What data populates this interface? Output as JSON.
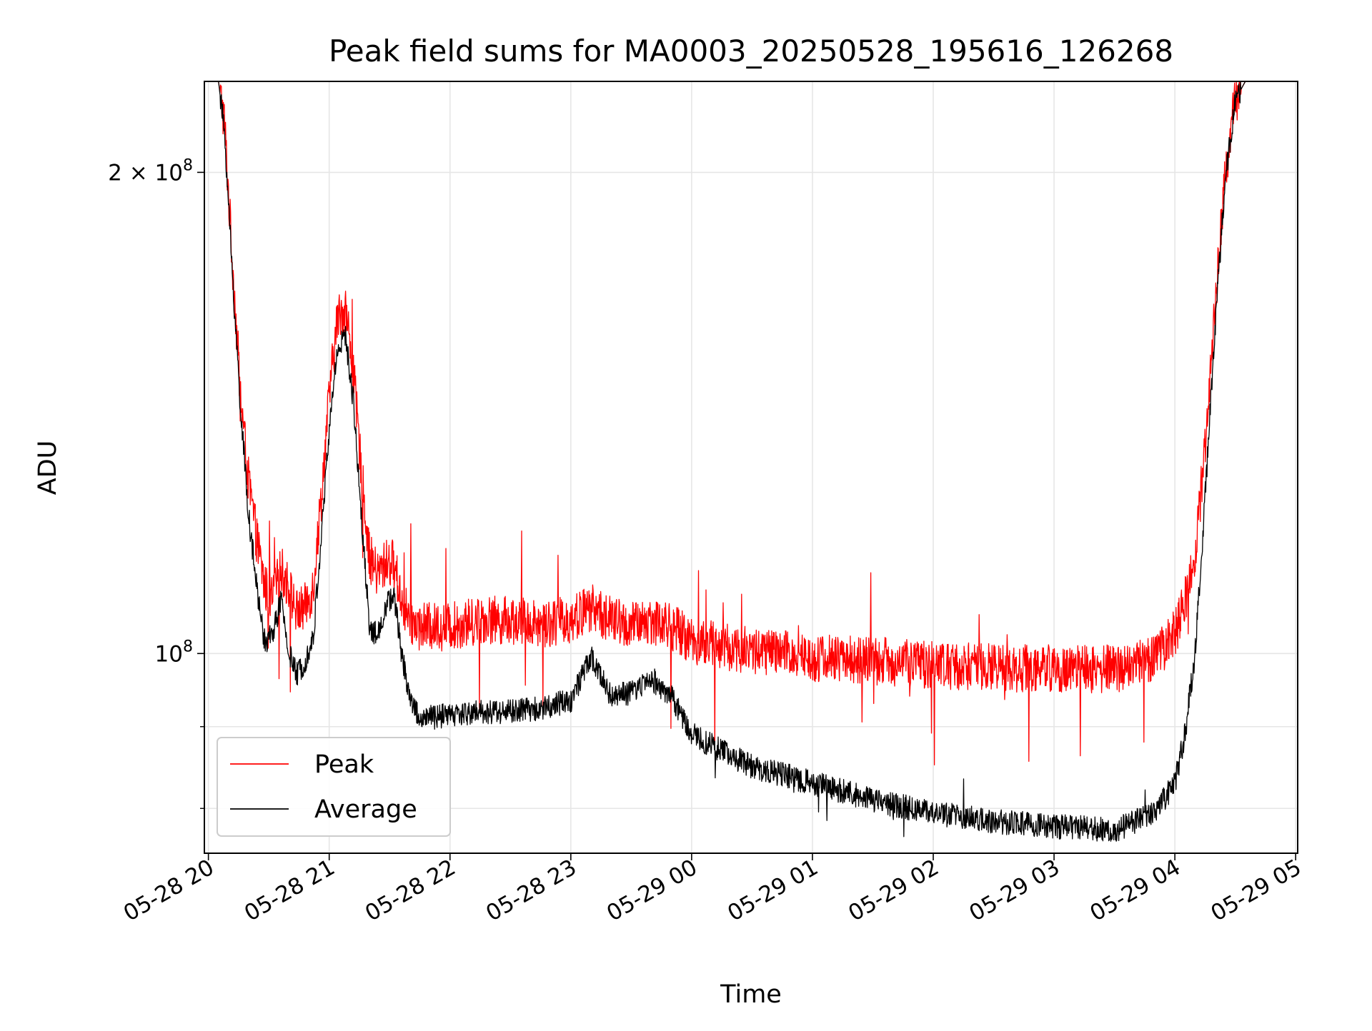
{
  "chart_data": {
    "type": "line",
    "title": "Peak field sums for MA0003_20250528_195616_126268",
    "xlabel": "Time",
    "ylabel": "ADU",
    "x_ticks": [
      "05-28 20",
      "05-28 21",
      "05-28 22",
      "05-28 23",
      "05-29 00",
      "05-29 01",
      "05-29 02",
      "05-29 03",
      "05-29 04",
      "05-29 05"
    ],
    "xlim": [
      "2025-05-28 19:58",
      "2025-05-29 05:01"
    ],
    "y_scale": "log",
    "ylim": [
      75000000,
      228000000
    ],
    "y_ticks": [
      {
        "value": 200000000,
        "base": "2 × 10",
        "exp": "8"
      },
      {
        "value": 100000000,
        "base": "10",
        "exp": "8"
      }
    ],
    "y_minor_ticks": [
      90000000,
      80000000
    ],
    "grid": true,
    "legend_position": "lower-left",
    "series": [
      {
        "name": "Peak",
        "color": "#ff0000",
        "points": [
          [
            "2025-05-28 20:00",
            228000000
          ],
          [
            "2025-05-28 20:05",
            228000000
          ],
          [
            "2025-05-28 20:08",
            215000000
          ],
          [
            "2025-05-28 20:12",
            175000000
          ],
          [
            "2025-05-28 20:16",
            145000000
          ],
          [
            "2025-05-28 20:20",
            128000000
          ],
          [
            "2025-05-28 20:24",
            118000000
          ],
          [
            "2025-05-28 20:28",
            110000000
          ],
          [
            "2025-05-28 20:32",
            108000000
          ],
          [
            "2025-05-28 20:36",
            113000000
          ],
          [
            "2025-05-28 20:40",
            110000000
          ],
          [
            "2025-05-28 20:44",
            106000000
          ],
          [
            "2025-05-28 20:48",
            107000000
          ],
          [
            "2025-05-28 20:52",
            110000000
          ],
          [
            "2025-05-28 20:56",
            125000000
          ],
          [
            "2025-05-28 21:00",
            145000000
          ],
          [
            "2025-05-28 21:04",
            162000000
          ],
          [
            "2025-05-28 21:08",
            165000000
          ],
          [
            "2025-05-28 21:12",
            150000000
          ],
          [
            "2025-05-28 21:16",
            130000000
          ],
          [
            "2025-05-28 21:20",
            115000000
          ],
          [
            "2025-05-28 21:24",
            112000000
          ],
          [
            "2025-05-28 21:28",
            114000000
          ],
          [
            "2025-05-28 21:32",
            114000000
          ],
          [
            "2025-05-28 21:36",
            108000000
          ],
          [
            "2025-05-28 21:40",
            105000000
          ],
          [
            "2025-05-28 21:45",
            104000000
          ],
          [
            "2025-05-28 22:00",
            104000000
          ],
          [
            "2025-05-28 22:15",
            105000000
          ],
          [
            "2025-05-28 22:30",
            105000000
          ],
          [
            "2025-05-28 22:45",
            104500000
          ],
          [
            "2025-05-28 23:00",
            105000000
          ],
          [
            "2025-05-28 23:10",
            107000000
          ],
          [
            "2025-05-28 23:20",
            105000000
          ],
          [
            "2025-05-28 23:30",
            104000000
          ],
          [
            "2025-05-28 23:40",
            105000000
          ],
          [
            "2025-05-28 23:50",
            104000000
          ],
          [
            "2025-05-29 00:00",
            102000000
          ],
          [
            "2025-05-29 00:15",
            101000000
          ],
          [
            "2025-05-29 00:30",
            100500000
          ],
          [
            "2025-05-29 00:45",
            100000000
          ],
          [
            "2025-05-29 01:00",
            99500000
          ],
          [
            "2025-05-29 01:30",
            99000000
          ],
          [
            "2025-05-29 02:00",
            98500000
          ],
          [
            "2025-05-29 02:30",
            98000000
          ],
          [
            "2025-05-29 03:00",
            98000000
          ],
          [
            "2025-05-29 03:30",
            97800000
          ],
          [
            "2025-05-29 03:50",
            99500000
          ],
          [
            "2025-05-29 04:00",
            103000000
          ],
          [
            "2025-05-29 04:05",
            108000000
          ],
          [
            "2025-05-29 04:10",
            115000000
          ],
          [
            "2025-05-29 04:15",
            135000000
          ],
          [
            "2025-05-29 04:20",
            165000000
          ],
          [
            "2025-05-29 04:25",
            200000000
          ],
          [
            "2025-05-29 04:30",
            222000000
          ],
          [
            "2025-05-29 04:35",
            228000000
          ],
          [
            "2025-05-29 05:00",
            228000000
          ]
        ]
      },
      {
        "name": "Average",
        "color": "#000000",
        "points": [
          [
            "2025-05-28 20:00",
            228000000
          ],
          [
            "2025-05-28 20:05",
            228000000
          ],
          [
            "2025-05-28 20:08",
            212000000
          ],
          [
            "2025-05-28 20:12",
            172000000
          ],
          [
            "2025-05-28 20:16",
            142000000
          ],
          [
            "2025-05-28 20:20",
            122000000
          ],
          [
            "2025-05-28 20:24",
            110000000
          ],
          [
            "2025-05-28 20:28",
            101500000
          ],
          [
            "2025-05-28 20:32",
            103000000
          ],
          [
            "2025-05-28 20:36",
            108000000
          ],
          [
            "2025-05-28 20:40",
            100000000
          ],
          [
            "2025-05-28 20:44",
            97000000
          ],
          [
            "2025-05-28 20:48",
            99000000
          ],
          [
            "2025-05-28 20:52",
            102000000
          ],
          [
            "2025-05-28 20:56",
            118000000
          ],
          [
            "2025-05-28 21:00",
            138000000
          ],
          [
            "2025-05-28 21:04",
            155000000
          ],
          [
            "2025-05-28 21:08",
            158000000
          ],
          [
            "2025-05-28 21:12",
            144000000
          ],
          [
            "2025-05-28 21:16",
            122000000
          ],
          [
            "2025-05-28 21:20",
            104000000
          ],
          [
            "2025-05-28 21:24",
            102500000
          ],
          [
            "2025-05-28 21:28",
            107000000
          ],
          [
            "2025-05-28 21:32",
            109000000
          ],
          [
            "2025-05-28 21:36",
            100000000
          ],
          [
            "2025-05-28 21:40",
            94000000
          ],
          [
            "2025-05-28 21:45",
            91000000
          ],
          [
            "2025-05-28 22:00",
            91500000
          ],
          [
            "2025-05-28 22:15",
            92000000
          ],
          [
            "2025-05-28 22:30",
            92000000
          ],
          [
            "2025-05-28 22:45",
            92500000
          ],
          [
            "2025-05-28 23:00",
            93500000
          ],
          [
            "2025-05-28 23:10",
            99500000
          ],
          [
            "2025-05-28 23:20",
            94000000
          ],
          [
            "2025-05-28 23:30",
            94500000
          ],
          [
            "2025-05-28 23:40",
            96500000
          ],
          [
            "2025-05-28 23:50",
            94000000
          ],
          [
            "2025-05-29 00:00",
            89000000
          ],
          [
            "2025-05-29 00:15",
            87000000
          ],
          [
            "2025-05-29 00:30",
            85000000
          ],
          [
            "2025-05-29 00:45",
            84000000
          ],
          [
            "2025-05-29 01:00",
            83000000
          ],
          [
            "2025-05-29 01:15",
            82000000
          ],
          [
            "2025-05-29 01:30",
            81000000
          ],
          [
            "2025-05-29 02:00",
            79500000
          ],
          [
            "2025-05-29 02:30",
            78500000
          ],
          [
            "2025-05-29 03:00",
            78000000
          ],
          [
            "2025-05-29 03:30",
            77500000
          ],
          [
            "2025-05-29 03:50",
            79500000
          ],
          [
            "2025-05-29 04:00",
            83000000
          ],
          [
            "2025-05-29 04:05",
            89000000
          ],
          [
            "2025-05-29 04:10",
            100000000
          ],
          [
            "2025-05-29 04:15",
            125000000
          ],
          [
            "2025-05-29 04:20",
            160000000
          ],
          [
            "2025-05-29 04:25",
            198000000
          ],
          [
            "2025-05-29 04:30",
            222000000
          ],
          [
            "2025-05-29 04:35",
            228000000
          ],
          [
            "2025-05-29 05:00",
            228000000
          ]
        ]
      }
    ]
  }
}
